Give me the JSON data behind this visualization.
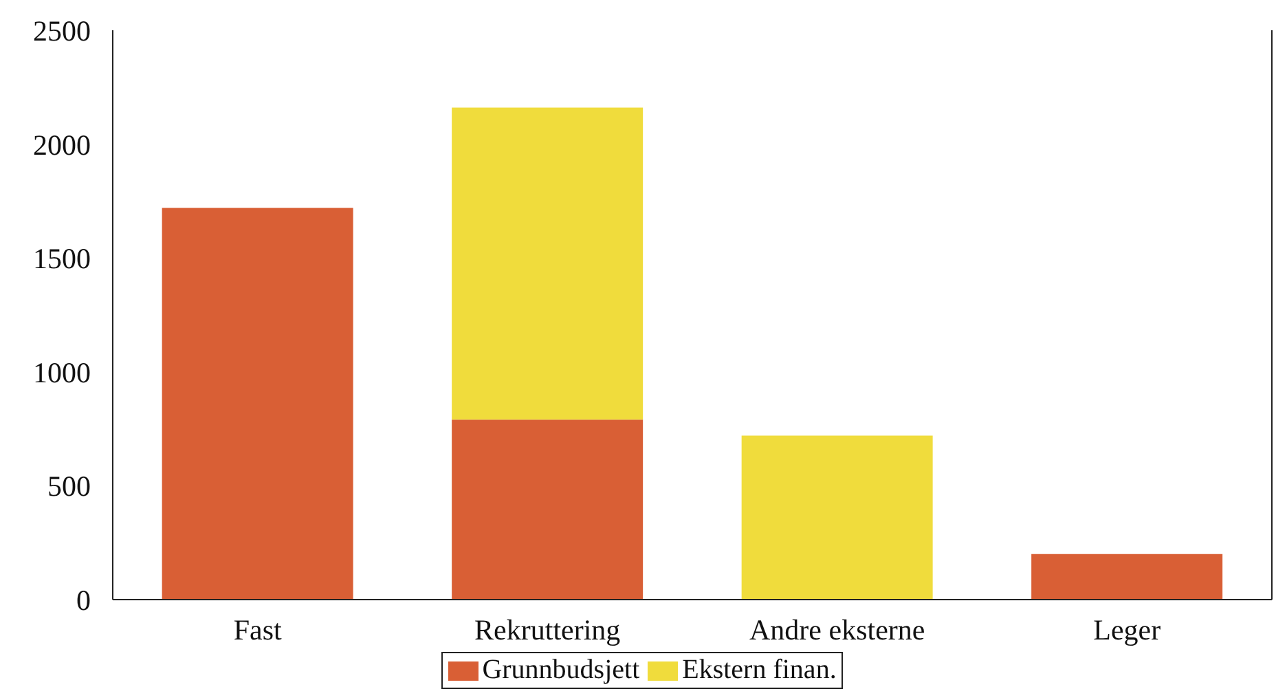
{
  "chart_data": {
    "type": "bar",
    "stacked": true,
    "categories": [
      "Fast",
      "Rekruttering",
      "Andre eksterne",
      "Leger"
    ],
    "series": [
      {
        "name": "Grunnbudsjett",
        "color": "#d95f35",
        "values": [
          1720,
          790,
          null,
          200
        ]
      },
      {
        "name": "Ekstern finan.",
        "color": "#f0dc3c",
        "values": [
          null,
          1370,
          720,
          null
        ]
      }
    ],
    "ylim": [
      0,
      2500
    ],
    "yticks": [
      0,
      500,
      1000,
      1500,
      2000,
      2500
    ],
    "grid": false,
    "legend": "bottom"
  }
}
